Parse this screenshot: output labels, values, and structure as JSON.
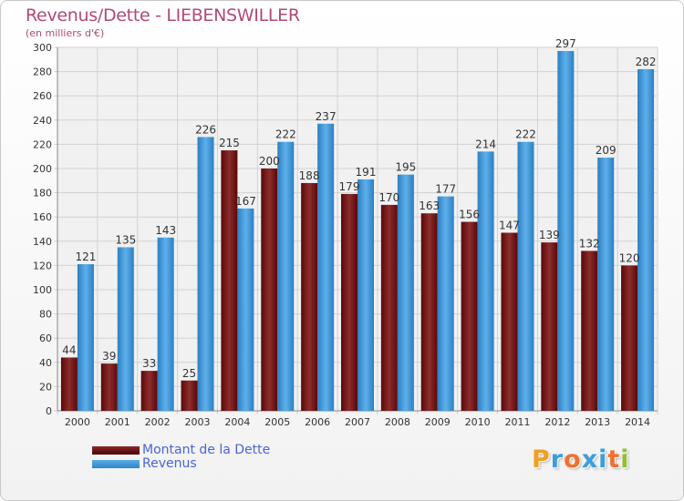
{
  "header": {
    "title": "Revenus/Dette - LIEBENSWILLER",
    "subtitle": "(en milliers d'€)"
  },
  "colors": {
    "dette": "#7a1e1e",
    "revenus": "#3f97db",
    "title": "#b04a78",
    "legend_text": "#4a64d8"
  },
  "legend": {
    "dette_label": "Montant de la Dette",
    "revenus_label": "Revenus"
  },
  "logo": {
    "letters": [
      "P",
      "r",
      "o",
      "x",
      "i",
      "t",
      "i"
    ],
    "colors": [
      "#f0a020",
      "#3a9de0",
      "#f07030",
      "#3a9de0",
      "#3a9de0",
      "#f07030",
      "#90c030"
    ]
  },
  "chart_data": {
    "type": "bar",
    "categories": [
      "2000",
      "2001",
      "2002",
      "2003",
      "2004",
      "2005",
      "2006",
      "2007",
      "2008",
      "2009",
      "2010",
      "2011",
      "2012",
      "2013",
      "2014"
    ],
    "series": [
      {
        "name": "Montant de la Dette",
        "values": [
          44,
          39,
          33,
          25,
          215,
          200,
          188,
          179,
          170,
          163,
          156,
          147,
          139,
          132,
          120
        ]
      },
      {
        "name": "Revenus",
        "values": [
          121,
          135,
          143,
          226,
          167,
          222,
          237,
          191,
          195,
          177,
          214,
          222,
          297,
          209,
          282
        ]
      }
    ],
    "ylim": [
      0,
      300
    ],
    "yticks": [
      0,
      20,
      40,
      60,
      80,
      100,
      120,
      140,
      160,
      180,
      200,
      220,
      240,
      260,
      280,
      300
    ],
    "grid": true,
    "legend": "bottom-left"
  }
}
